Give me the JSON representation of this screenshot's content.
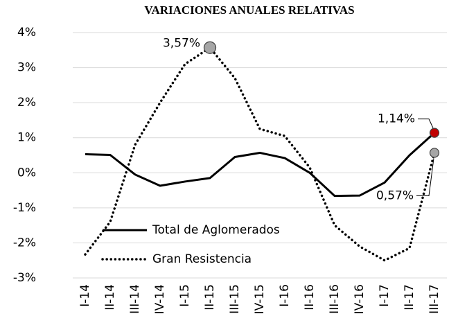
{
  "chart_data": {
    "type": "line",
    "title": "VARIACIONES ANUALES RELATIVAS",
    "categories": [
      "I-14",
      "II-14",
      "III-14",
      "IV-14",
      "I-15",
      "II-15",
      "III-15",
      "IV-15",
      "I-16",
      "II-16",
      "III-16",
      "IV-16",
      "I-17",
      "II-17",
      "III-17"
    ],
    "series": [
      {
        "name": "Total de Aglomerados",
        "color": "#000000",
        "dash": "solid",
        "marker_color": "#c00000",
        "values": [
          0.53,
          0.51,
          -0.05,
          -0.37,
          -0.25,
          -0.15,
          0.45,
          0.57,
          0.42,
          0.0,
          -0.66,
          -0.65,
          -0.28,
          0.5,
          1.14
        ],
        "value_labels": [
          null,
          null,
          null,
          null,
          null,
          null,
          null,
          null,
          null,
          null,
          null,
          null,
          null,
          null,
          "1,14%"
        ]
      },
      {
        "name": "Gran Resistencia",
        "color": "#000000",
        "dash": "dotted",
        "marker_color": "#a6a6a6",
        "values": [
          -2.33,
          -1.4,
          0.8,
          2.0,
          3.1,
          3.57,
          2.7,
          1.25,
          1.05,
          0.15,
          -1.5,
          -2.1,
          -2.5,
          -2.15,
          0.57
        ],
        "value_labels": [
          null,
          null,
          null,
          null,
          null,
          "3,57%",
          null,
          null,
          null,
          null,
          null,
          null,
          null,
          null,
          "0,57%"
        ]
      }
    ],
    "ylim": [
      -3,
      4
    ],
    "yticks": [
      {
        "value": -3,
        "label": "-3%"
      },
      {
        "value": -2,
        "label": "-2%"
      },
      {
        "value": -1,
        "label": "-1%"
      },
      {
        "value": 0,
        "label": "0%"
      },
      {
        "value": 1,
        "label": "1%"
      },
      {
        "value": 2,
        "label": "2%"
      },
      {
        "value": 3,
        "label": "3%"
      },
      {
        "value": 4,
        "label": "4%"
      }
    ],
    "grid": true
  }
}
